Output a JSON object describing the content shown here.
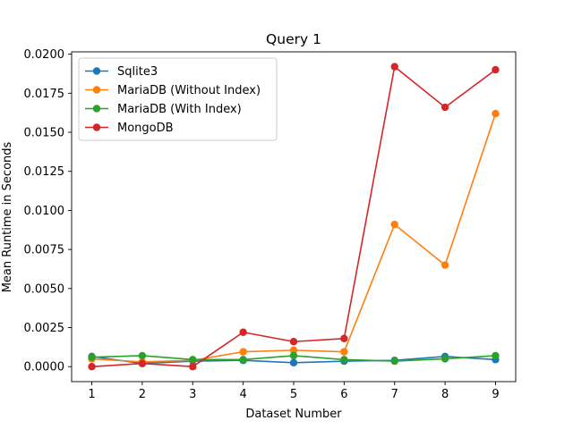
{
  "chart_data": {
    "type": "line",
    "title": "Query 1",
    "xlabel": "Dataset Number",
    "ylabel": "Mean Runtime in Seconds",
    "x": [
      1,
      2,
      3,
      4,
      5,
      6,
      7,
      8,
      9
    ],
    "xlim": [
      0.6,
      9.4
    ],
    "ylim": [
      -0.00096,
      0.02015
    ],
    "y_ticks": [
      0.0,
      0.0025,
      0.005,
      0.0075,
      0.01,
      0.0125,
      0.015,
      0.0175,
      0.02
    ],
    "y_tick_labels": [
      "0.0000",
      "0.0025",
      "0.0050",
      "0.0075",
      "0.0100",
      "0.0125",
      "0.0150",
      "0.0175",
      "0.0200"
    ],
    "x_tick_labels": [
      "1",
      "2",
      "3",
      "4",
      "5",
      "6",
      "7",
      "8",
      "9"
    ],
    "grid": false,
    "legend_position": "top-left",
    "series": [
      {
        "name": "Sqlite3",
        "color": "#1f77b4",
        "values": [
          0.00065,
          0.0002,
          0.00035,
          0.0004,
          0.00025,
          0.00035,
          0.0004,
          0.00065,
          0.00045
        ]
      },
      {
        "name": "MariaDB (Without Index)",
        "color": "#ff7f0e",
        "values": [
          0.0005,
          0.0003,
          0.0004,
          0.00095,
          0.00105,
          0.00095,
          0.0091,
          0.0065,
          0.0162
        ]
      },
      {
        "name": "MariaDB (With Index)",
        "color": "#2ca02c",
        "values": [
          0.0006,
          0.0007,
          0.00045,
          0.00045,
          0.0007,
          0.00045,
          0.00035,
          0.0005,
          0.0007
        ]
      },
      {
        "name": "MongoDB",
        "color": "#d62728",
        "values": [
          0.0,
          0.0002,
          0.0,
          0.0022,
          0.0016,
          0.0018,
          0.0192,
          0.0166,
          0.019
        ]
      }
    ]
  }
}
